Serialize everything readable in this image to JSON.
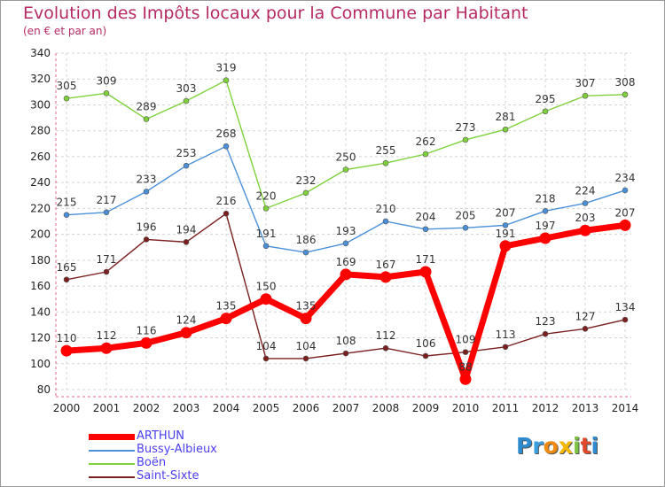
{
  "header": {
    "title": "Evolution des Impôts locaux pour la Commune par Habitant",
    "subtitle": "(en € et par an)"
  },
  "chart_data": {
    "type": "line",
    "title": "Evolution des Impôts locaux pour la Commune par Habitant",
    "subtitle": "(en € et par an)",
    "x": [
      2000,
      2001,
      2002,
      2003,
      2004,
      2005,
      2006,
      2007,
      2008,
      2009,
      2010,
      2011,
      2012,
      2013,
      2014
    ],
    "ylim": [
      80,
      340
    ],
    "y_ticks": [
      80,
      100,
      120,
      140,
      160,
      180,
      200,
      220,
      240,
      260,
      280,
      300,
      320,
      340
    ],
    "grid": true,
    "legend_position": "bottom-left",
    "series": [
      {
        "name": "ARTHUN",
        "color": "#ff0000",
        "values": [
          110,
          112,
          116,
          124,
          135,
          150,
          135,
          169,
          167,
          171,
          88,
          191,
          197,
          203,
          207
        ]
      },
      {
        "name": "Bussy-Albieux",
        "color": "#4a90d9",
        "values": [
          215,
          217,
          233,
          253,
          268,
          191,
          186,
          193,
          210,
          204,
          205,
          207,
          218,
          224,
          234
        ]
      },
      {
        "name": "Boën",
        "color": "#7fd13b",
        "values": [
          305,
          309,
          289,
          303,
          319,
          220,
          232,
          250,
          255,
          262,
          273,
          281,
          295,
          307,
          308
        ]
      },
      {
        "name": "Saint-Sixte",
        "color": "#7a1e1e",
        "values": [
          165,
          171,
          196,
          194,
          216,
          104,
          104,
          108,
          112,
          106,
          109,
          113,
          123,
          127,
          134
        ]
      }
    ]
  },
  "logo": {
    "letters": [
      "P",
      "r",
      "o",
      "x",
      "i",
      "t",
      "i"
    ],
    "colors": [
      "#2e8bd0",
      "#3aa0e0",
      "#f08a10",
      "#f5b800",
      "#7cc242",
      "#e04a2a",
      "#2e8bd0"
    ]
  }
}
